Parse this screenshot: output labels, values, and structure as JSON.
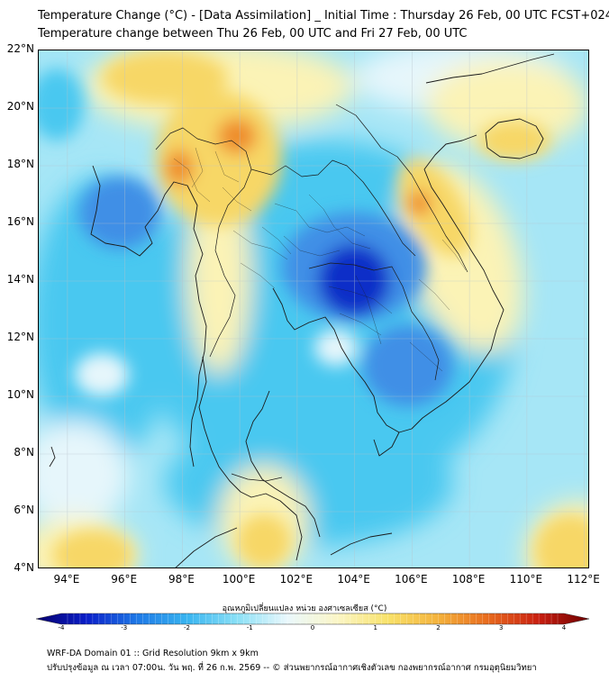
{
  "title": {
    "line1": "Temperature Change (°C) - [Data Assimilation] _ Initial Time : Thursday 26 Feb, 00 UTC FCST+024",
    "line2": "Temperature change between Thu 26 Feb, 00 UTC and Fri 27 Feb, 00 UTC"
  },
  "map": {
    "lat_labels": [
      "22°N",
      "20°N",
      "18°N",
      "16°N",
      "14°N",
      "12°N",
      "10°N",
      "8°N",
      "6°N",
      "4°N"
    ],
    "lon_labels": [
      "94°E",
      "96°E",
      "98°E",
      "100°E",
      "102°E",
      "104°E",
      "106°E",
      "108°E",
      "110°E",
      "112°E"
    ],
    "lat_range": [
      4,
      22
    ],
    "lon_range": [
      93,
      112.2
    ],
    "colors": {
      "strong_cool": "#0a2fc8",
      "cool": "#3f8fe6",
      "mild_cool": "#49c8f0",
      "slight_cool": "#a6e6f6",
      "neutral": "#e6f6fb",
      "slight_warm": "#fbf3b6",
      "warm": "#f7d766",
      "hot": "#ef8c2a"
    }
  },
  "colorbar": {
    "label": "อุณหภูมิเปลี่ยนแปลง หน่วย องศาเซลเซียส (°C)",
    "ticks": [
      "-4",
      "-3",
      "-2",
      "-1",
      "0",
      "1",
      "2",
      "3",
      "4"
    ],
    "min": -4,
    "max": 4,
    "stops": [
      "#06006e",
      "#0a1ec8",
      "#1e78e6",
      "#38b4f0",
      "#8ae0f6",
      "#eaf8fc",
      "#fbf6c6",
      "#f8e26a",
      "#f4b23c",
      "#e86a1e",
      "#c81e10",
      "#6e0000"
    ]
  },
  "footer": {
    "line1": "WRF-DA Domain 01 :: Grid Resolution 9km x 9km",
    "line2": "ปรับปรุงข้อมูล ณ เวลา 07:00น. วัน พฤ. ที่ 26 ก.พ. 2569 -- © ส่วนพยากรณ์อากาศเชิงตัวเลข กองพยากรณ์อากาศ กรมอุตุนิยมวิทยา"
  }
}
